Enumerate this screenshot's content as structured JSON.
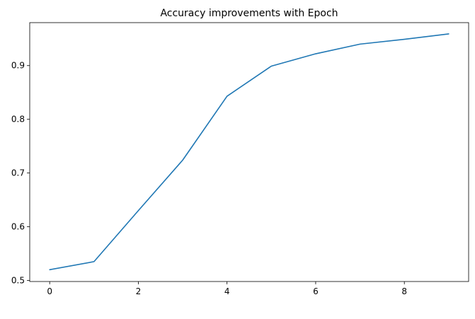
{
  "chart_data": {
    "type": "line",
    "title": "Accuracy improvements with Epoch",
    "xlabel": "",
    "ylabel": "",
    "xlim": [
      -0.45,
      9.45
    ],
    "ylim": [
      0.498,
      0.98
    ],
    "xticks": [
      0,
      2,
      4,
      6,
      8
    ],
    "yticks": [
      0.5,
      0.6,
      0.7,
      0.8,
      0.9
    ],
    "xtick_labels": [
      "0",
      "2",
      "4",
      "6",
      "8"
    ],
    "ytick_labels": [
      "0.5",
      "0.6",
      "0.7",
      "0.8",
      "0.9"
    ],
    "grid": false,
    "legend": "none",
    "series": [
      {
        "color": "#1f77b4",
        "x": [
          0,
          1,
          2,
          3,
          4,
          5,
          6,
          7,
          8,
          9
        ],
        "y": [
          0.52,
          0.535,
          0.63,
          0.724,
          0.843,
          0.899,
          0.922,
          0.94,
          0.949,
          0.959
        ]
      }
    ]
  }
}
